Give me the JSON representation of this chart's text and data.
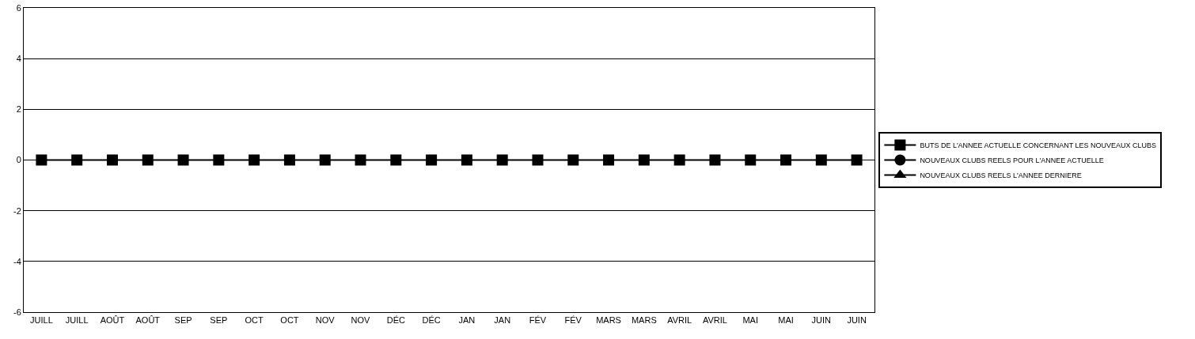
{
  "chart_data": {
    "type": "line",
    "categories": [
      "JUILL",
      "JUILL",
      "AOÛT",
      "AOÛT",
      "SEP",
      "SEP",
      "OCT",
      "OCT",
      "NOV",
      "NOV",
      "DÉC",
      "DÉC",
      "JAN",
      "JAN",
      "FÉV",
      "FÉV",
      "MARS",
      "MARS",
      "AVRIL",
      "AVRIL",
      "MAI",
      "MAI",
      "JUIN",
      "JUIN"
    ],
    "series": [
      {
        "name": "BUTS DE L'ANNEE ACTUELLE CONCERNANT LES NOUVEAUX CLUBS",
        "color": "#000000",
        "marker": "square",
        "values": [
          0,
          0,
          0,
          0,
          0,
          0,
          0,
          0,
          0,
          0,
          0,
          0,
          0,
          0,
          0,
          0,
          0,
          0,
          0,
          0,
          0,
          0,
          0,
          0
        ]
      },
      {
        "name": "NOUVEAUX CLUBS REELS POUR L'ANNEE ACTUELLE",
        "color": "#000000",
        "marker": "circle",
        "values": [
          null,
          null,
          null,
          null,
          null,
          null,
          null,
          null,
          null,
          null,
          null,
          null,
          null,
          null,
          null,
          null,
          null,
          null,
          null,
          null,
          null,
          null,
          null,
          null
        ]
      },
      {
        "name": "NOUVEAUX CLUBS REELS L'ANNEE DERNIERE",
        "color": "#000000",
        "marker": "triangle",
        "values": [
          null,
          null,
          null,
          null,
          null,
          null,
          null,
          null,
          null,
          null,
          null,
          null,
          null,
          null,
          null,
          null,
          null,
          null,
          null,
          null,
          null,
          null,
          null,
          null
        ]
      }
    ],
    "ylim": [
      -6,
      6
    ],
    "yticks": [
      -6,
      -4,
      -2,
      0,
      2,
      4,
      6
    ],
    "grid": "y",
    "legend": "right",
    "line_style": "solid"
  }
}
